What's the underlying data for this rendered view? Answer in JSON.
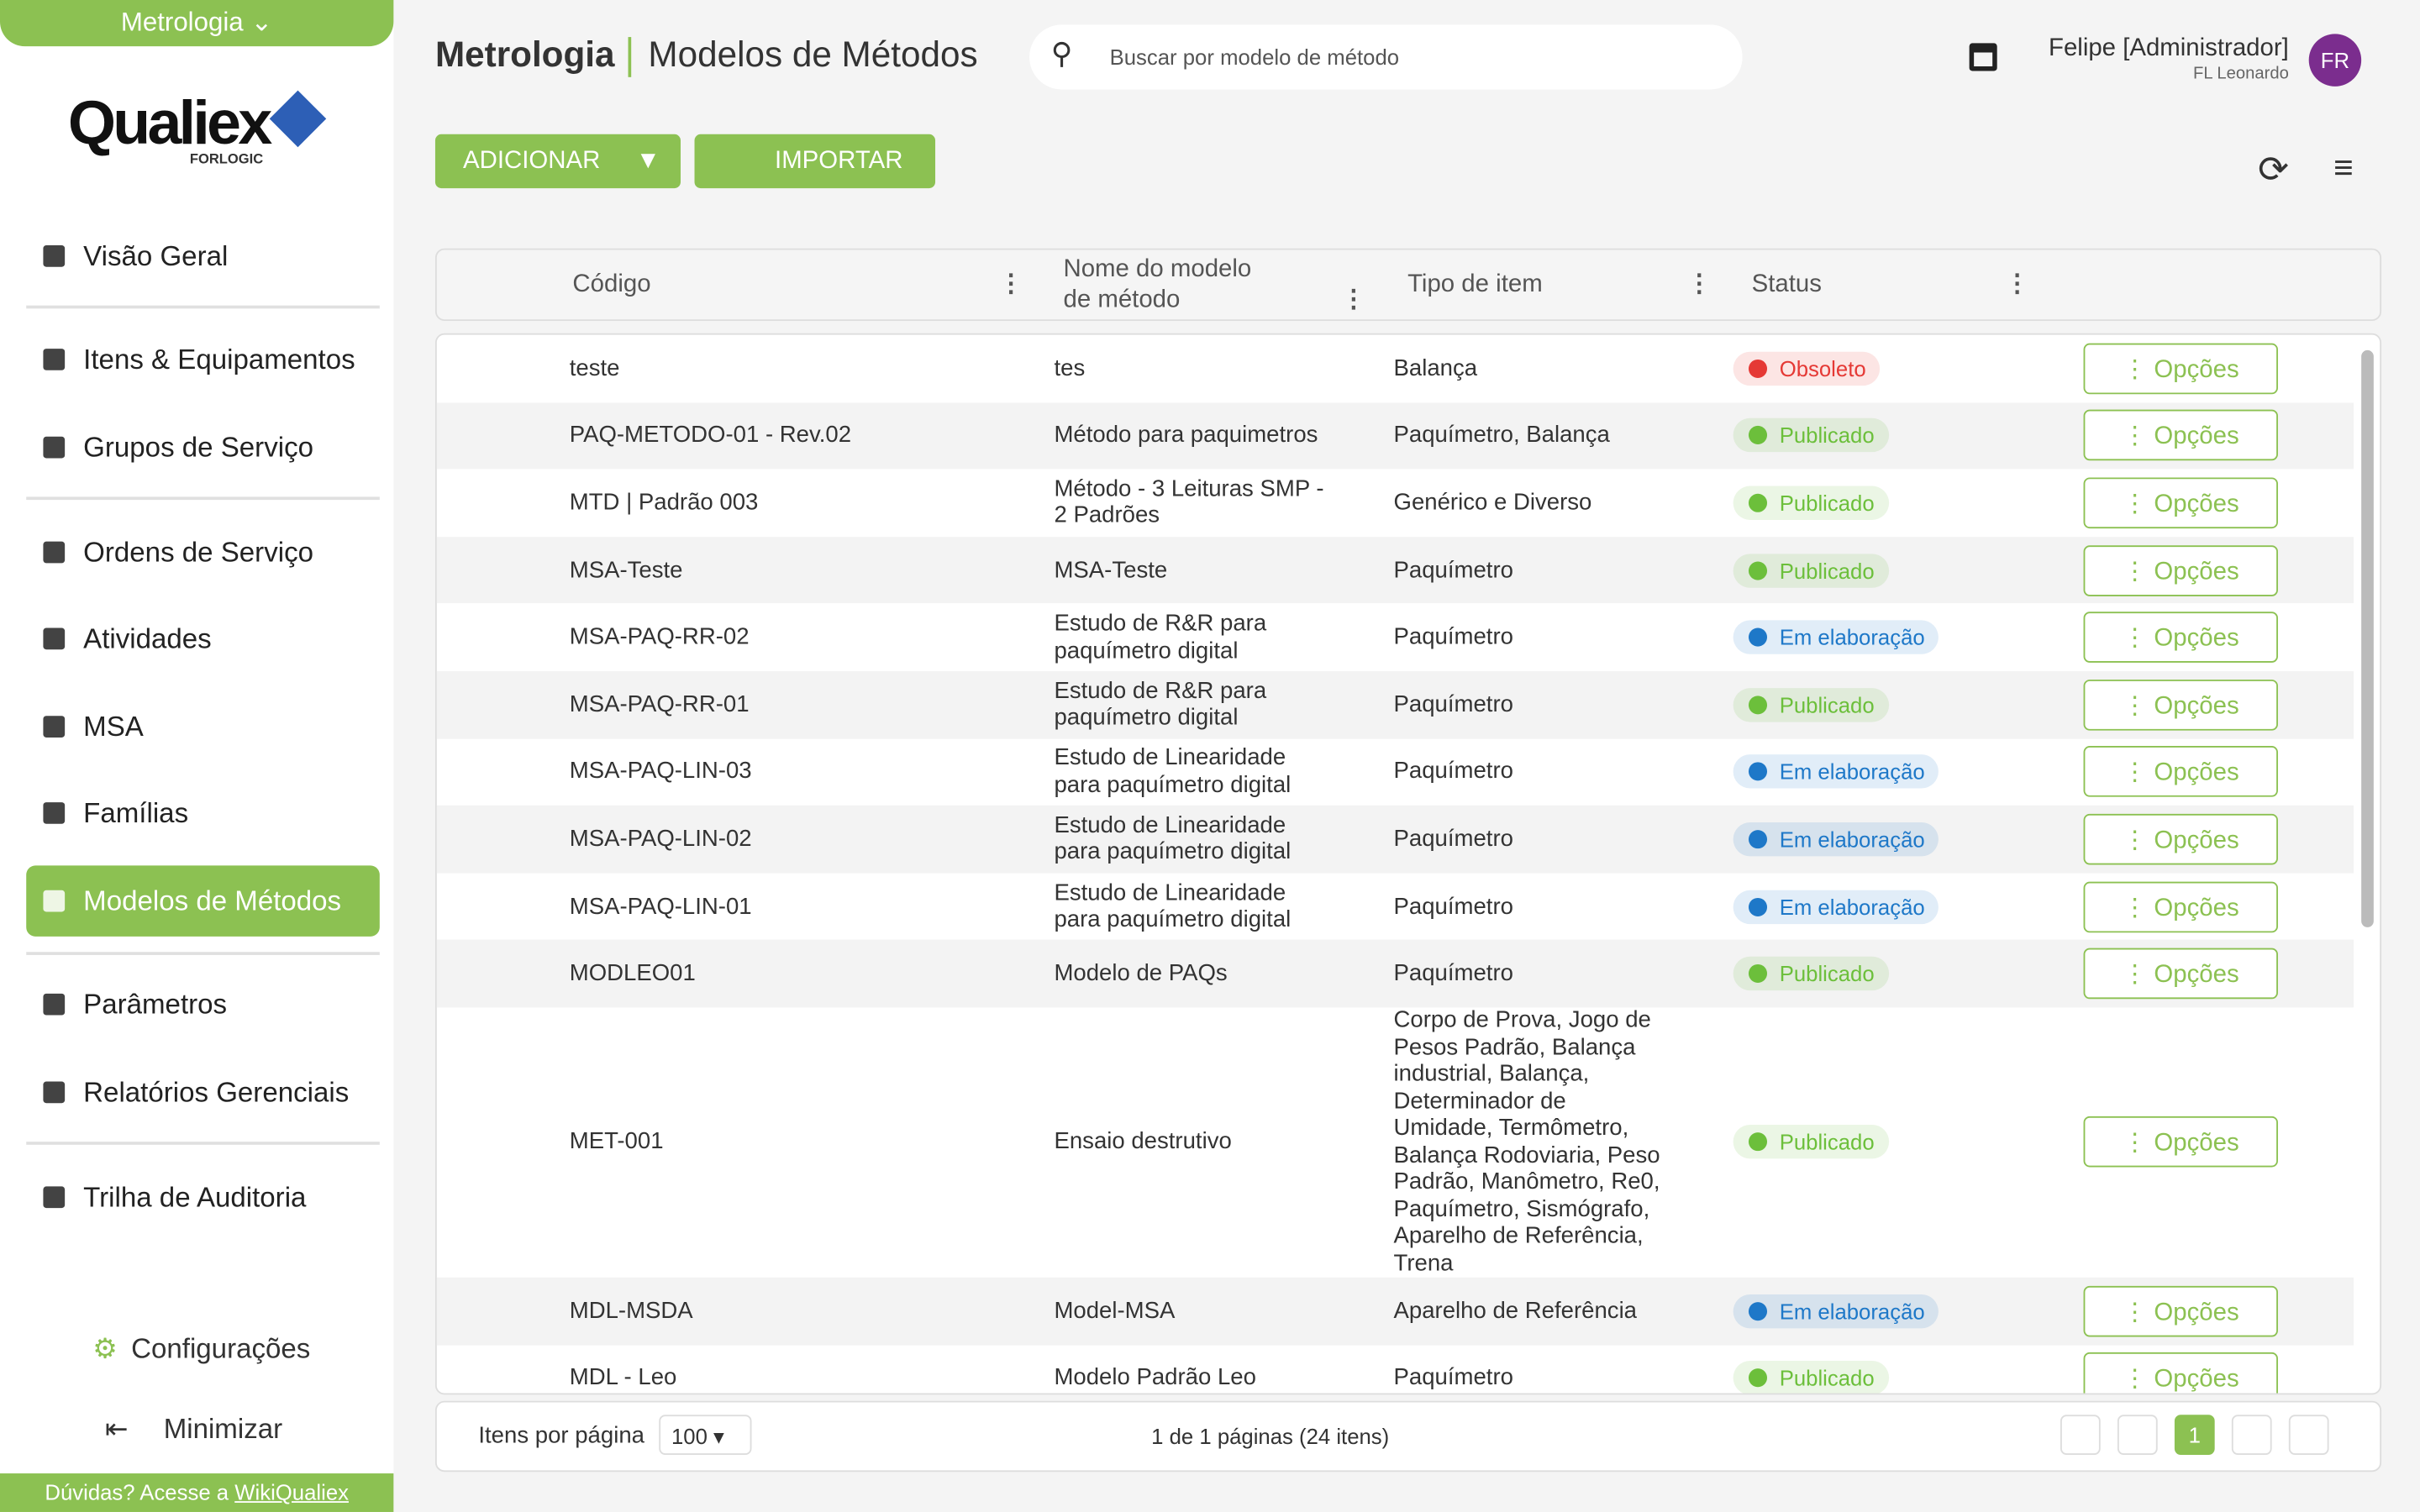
{
  "sidebar": {
    "module": "Metrologia",
    "logo": "Qualiex",
    "logo_sub": "FORLOGIC",
    "items": [
      "Visão Geral",
      "Itens & Equipamentos",
      "Grupos de Serviço",
      "Ordens de Serviço",
      "Atividades",
      "MSA",
      "Famílias",
      "Modelos de Métodos",
      "Parâmetros",
      "Relatórios Gerenciais",
      "Trilha de Auditoria"
    ],
    "settings": "Configurações",
    "minimize": "Minimizar",
    "help": "Dúvidas? Acesse a",
    "help_link": "WikiQualiex"
  },
  "header": {
    "module": "Metrologia",
    "title": "Modelos de Métodos",
    "search_placeholder": "Buscar por modelo de método",
    "user": "Felipe [Administrador]",
    "company": "FL Leonardo",
    "avatar": "FR"
  },
  "toolbar": {
    "add": "ADICIONAR",
    "import": "IMPORTAR"
  },
  "table": {
    "columns": [
      "Código",
      "Nome do modelo de método",
      "Tipo de item",
      "Status"
    ],
    "options_label": "Opções",
    "rows": [
      {
        "code": "teste",
        "name": "tes",
        "type": "Balança",
        "status": {
          "label": "Obsoleto",
          "color": "#e53935"
        }
      },
      {
        "code": "PAQ-METODO-01 - Rev.02",
        "name": "Método para paquimetros",
        "type": "Paquímetro, Balança",
        "status": {
          "label": "Publicado",
          "color": "#6cbf3b"
        }
      },
      {
        "code": "MTD | Padrão 003",
        "name": "Método - 3 Leituras SMP - 2 Padrões",
        "type": "Genérico e Diverso",
        "status": {
          "label": "Publicado",
          "color": "#6cbf3b"
        }
      },
      {
        "code": "MSA-Teste",
        "name": "MSA-Teste",
        "type": "Paquímetro",
        "status": {
          "label": "Publicado",
          "color": "#6cbf3b"
        }
      },
      {
        "code": "MSA-PAQ-RR-02",
        "name": "Estudo de R&R para paquímetro digital",
        "type": "Paquímetro",
        "status": {
          "label": "Em elaboração",
          "color": "#1e78c8"
        }
      },
      {
        "code": "MSA-PAQ-RR-01",
        "name": "Estudo de R&R para paquímetro digital",
        "type": "Paquímetro",
        "status": {
          "label": "Publicado",
          "color": "#6cbf3b"
        }
      },
      {
        "code": "MSA-PAQ-LIN-03",
        "name": "Estudo de Linearidade para paquímetro digital",
        "type": "Paquímetro",
        "status": {
          "label": "Em elaboração",
          "color": "#1e78c8"
        }
      },
      {
        "code": "MSA-PAQ-LIN-02",
        "name": "Estudo de Linearidade para paquímetro digital",
        "type": "Paquímetro",
        "status": {
          "label": "Em elaboração",
          "color": "#1e78c8"
        }
      },
      {
        "code": "MSA-PAQ-LIN-01",
        "name": "Estudo de Linearidade para paquímetro digital",
        "type": "Paquímetro",
        "status": {
          "label": "Em elaboração",
          "color": "#1e78c8"
        }
      },
      {
        "code": "MODLEO01",
        "name": "Modelo de PAQs",
        "type": "Paquímetro",
        "status": {
          "label": "Publicado",
          "color": "#6cbf3b"
        }
      },
      {
        "code": "MET-001",
        "name": "Ensaio destrutivo",
        "type": "Corpo de Prova, Jogo de Pesos Padrão, Balança industrial, Balança, Determinador de Umidade, Termômetro, Balança Rodoviaria, Peso Padrão, Manômetro, Re0, Paquímetro, Sismógrafo, Aparelho de Referência, Trena",
        "status": {
          "label": "Publicado",
          "color": "#6cbf3b"
        }
      },
      {
        "code": "MDL-MSDA",
        "name": "Model-MSA",
        "type": "Aparelho de Referência",
        "status": {
          "label": "Em elaboração",
          "color": "#1e78c8"
        }
      },
      {
        "code": "MDL - Leo",
        "name": "Modelo Padrão Leo",
        "type": "Paquímetro",
        "status": {
          "label": "Publicado",
          "color": "#6cbf3b"
        }
      }
    ]
  },
  "pagination": {
    "per_page_label": "Itens por página",
    "per_page": "100",
    "summary": "1 de 1 páginas (24 itens)",
    "current": "1"
  }
}
